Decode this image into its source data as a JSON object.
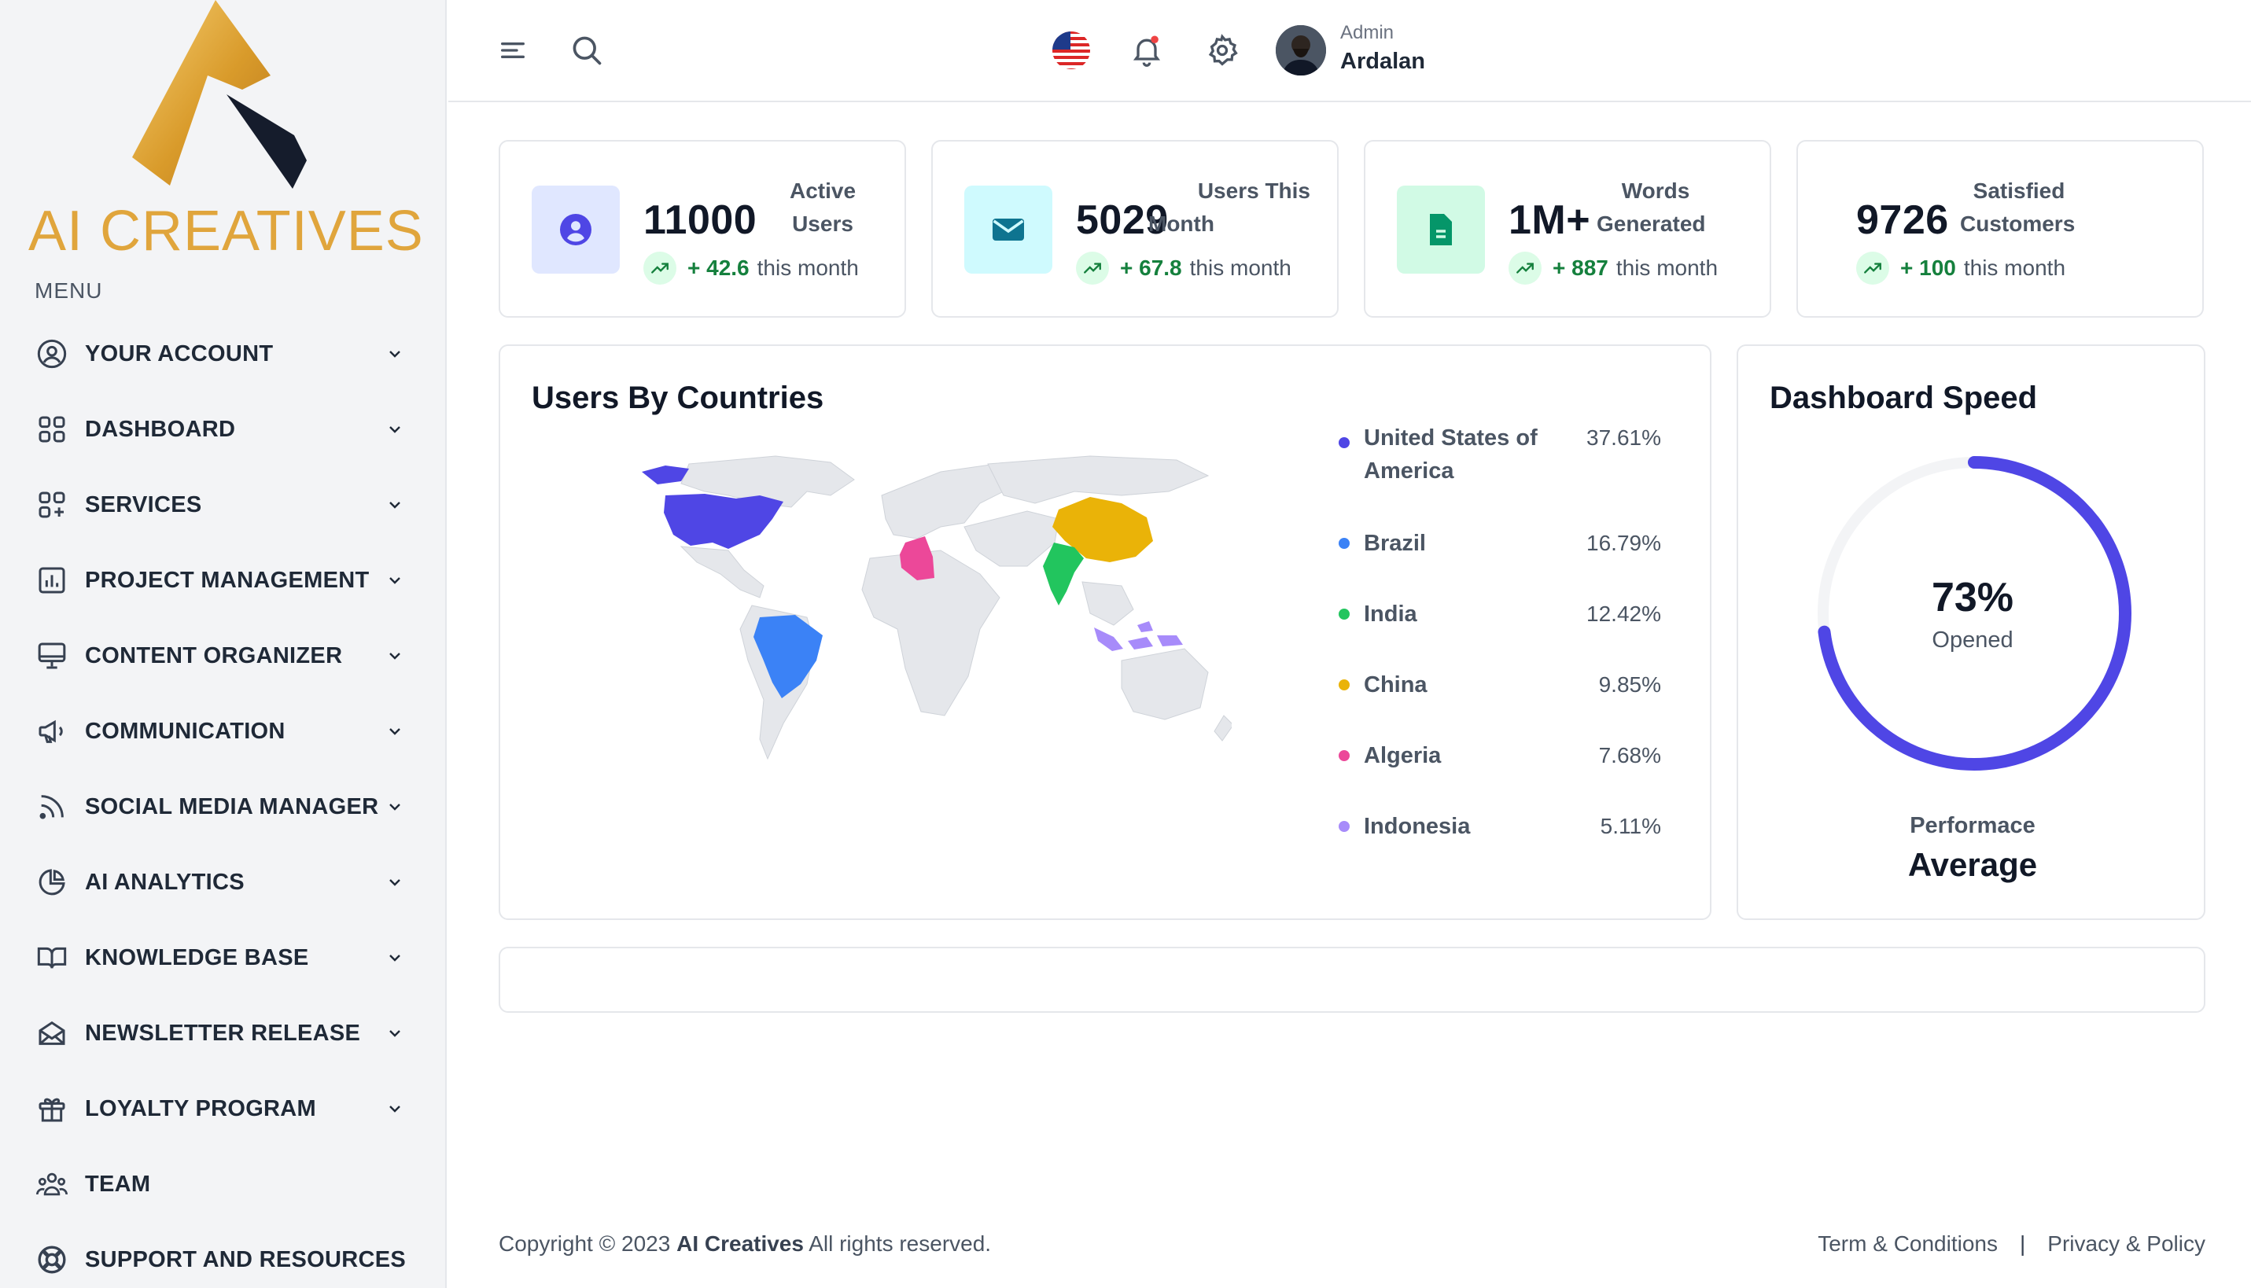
{
  "brand": {
    "name": "AI CREATIVES",
    "colors": {
      "gold": "#e0a53c",
      "dark": "#111827"
    }
  },
  "sidebar": {
    "menu_label": "MENU",
    "items": [
      {
        "label": "YOUR ACCOUNT",
        "icon": "user-circle-icon",
        "has_submenu": true
      },
      {
        "label": "DASHBOARD",
        "icon": "grid-icon",
        "has_submenu": true
      },
      {
        "label": "SERVICES",
        "icon": "grid-plus-icon",
        "has_submenu": true
      },
      {
        "label": "PROJECT MANAGEMENT",
        "icon": "bar-chart-box-icon",
        "has_submenu": true
      },
      {
        "label": "CONTENT ORGANIZER",
        "icon": "monitor-icon",
        "has_submenu": true
      },
      {
        "label": "COMMUNICATION",
        "icon": "megaphone-icon",
        "has_submenu": true
      },
      {
        "label": "SOCIAL MEDIA MANAGER",
        "icon": "rss-icon",
        "has_submenu": true
      },
      {
        "label": "AI ANALYTICS",
        "icon": "pie-chart-icon",
        "has_submenu": true
      },
      {
        "label": "KNOWLEDGE BASE",
        "icon": "book-open-icon",
        "has_submenu": true
      },
      {
        "label": "NEWSLETTER RELEASE",
        "icon": "mail-open-icon",
        "has_submenu": true
      },
      {
        "label": "LOYALTY PROGRAM",
        "icon": "gift-icon",
        "has_submenu": true
      },
      {
        "label": "TEAM",
        "icon": "users-icon",
        "has_submenu": false
      },
      {
        "label": "SUPPORT AND RESOURCES",
        "icon": "lifebuoy-icon",
        "has_submenu": false
      }
    ]
  },
  "topbar": {
    "icons": [
      "menu-icon",
      "search-icon",
      "us-flag-icon",
      "bell-icon",
      "gear-icon"
    ],
    "notification_dot_color": "#ef4444",
    "user": {
      "role": "Admin",
      "name": "Ardalan"
    }
  },
  "stats": [
    {
      "value": "11000",
      "label_line1": "Active",
      "label_line2": "Users",
      "trend_value": "+ 42.6",
      "trend_text": "this month",
      "icon": "user-circle-icon",
      "icon_bg": "#e0e7ff",
      "icon_color": "#4f46e5"
    },
    {
      "value": "5029",
      "label_line1": "Users This",
      "label_line2": "Month",
      "trend_value": "+ 67.8",
      "trend_text": "this month",
      "icon": "envelope-icon",
      "icon_bg": "#cffafe",
      "icon_color": "#0e7490"
    },
    {
      "value": "1M+",
      "label_line1": "Words",
      "label_line2": "Generated",
      "trend_value": "+ 887",
      "trend_text": "this month",
      "icon": "document-icon",
      "icon_bg": "#d1fae5",
      "icon_color": "#059669"
    },
    {
      "value": "9726",
      "label_line1": "Satisfied",
      "label_line2": "Customers",
      "trend_value": "+ 100",
      "trend_text": "this month",
      "icon": "",
      "icon_bg": "",
      "icon_color": ""
    }
  ],
  "countries_card": {
    "title": "Users By Countries",
    "legend": [
      {
        "name": "United States of America",
        "value": "37.61%",
        "color": "#4f46e5"
      },
      {
        "name": "Brazil",
        "value": "16.79%",
        "color": "#3b82f6"
      },
      {
        "name": "India",
        "value": "12.42%",
        "color": "#22c55e"
      },
      {
        "name": "China",
        "value": "9.85%",
        "color": "#eab308"
      },
      {
        "name": "Algeria",
        "value": "7.68%",
        "color": "#ec4899"
      },
      {
        "name": "Indonesia",
        "value": "5.11%",
        "color": "#a78bfa"
      }
    ]
  },
  "speed_card": {
    "title": "Dashboard Speed",
    "gauge_value": "73%",
    "gauge_fraction": 0.73,
    "gauge_label": "Opened",
    "gauge_color": "#4f46e5",
    "performance_label": "Performace",
    "performance_value": "Average"
  },
  "footer": {
    "copyright_prefix": "Copyright © 2023",
    "company": "AI Creatives",
    "rights": "All rights reserved.",
    "links": [
      "Term & Conditions",
      "Privacy & Policy"
    ]
  }
}
